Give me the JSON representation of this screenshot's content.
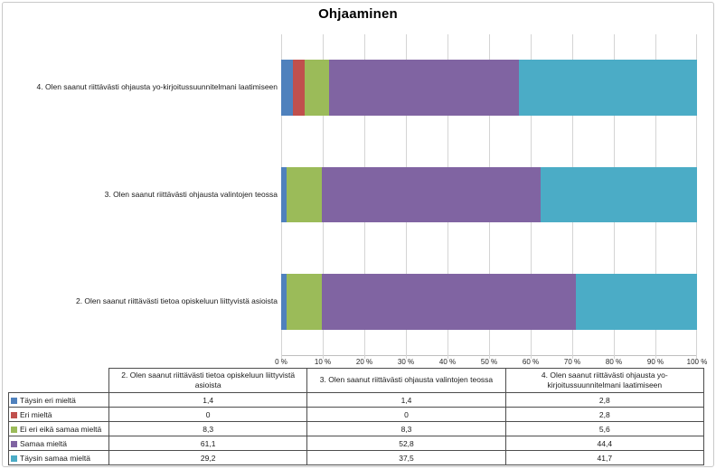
{
  "chart_data": {
    "type": "bar",
    "orientation": "horizontal",
    "stacked": true,
    "percent_stacked": true,
    "title": "Ohjaaminen",
    "categories": [
      "4. Olen saanut riittävästi ohjausta yo-kirjoitussuunnitelmani laatimiseen",
      "3. Olen saanut riittävästi ohjausta valintojen teossa",
      "2. Olen saanut riittävästi tietoa opiskeluun liittyvistä asioista"
    ],
    "series": [
      {
        "name": "Täysin eri mieltä",
        "color": "#4F81BD",
        "values": [
          2.8,
          1.4,
          1.4
        ]
      },
      {
        "name": "Eri mieltä",
        "color": "#C0504D",
        "values": [
          2.8,
          0,
          0
        ]
      },
      {
        "name": "Ei eri eikä samaa mieltä",
        "color": "#9BBB59",
        "values": [
          5.6,
          8.3,
          8.3
        ]
      },
      {
        "name": "Samaa mieltä",
        "color": "#8064A2",
        "values": [
          44.4,
          52.8,
          61.1
        ]
      },
      {
        "name": "Täysin samaa mieltä",
        "color": "#4BACC6",
        "values": [
          41.7,
          37.5,
          29.2
        ]
      }
    ],
    "xlim": [
      0,
      100
    ],
    "x_ticks": [
      "0 %",
      "10 %",
      "20 %",
      "30 %",
      "40 %",
      "50 %",
      "60 %",
      "70 %",
      "80 %",
      "90 %",
      "100 %"
    ],
    "grid": true,
    "legend_position": "table-below"
  },
  "table": {
    "columns": [
      "2. Olen saanut riittävästi tietoa opiskeluun liittyvistä asioista",
      "3. Olen saanut riittävästi ohjausta valintojen teossa",
      "4. Olen saanut riittävästi ohjausta yo-kirjoitussuunnitelmani laatimiseen"
    ],
    "rows": [
      {
        "label": "Täysin eri mieltä",
        "color": "#4F81BD",
        "values": [
          "1,4",
          "1,4",
          "2,8"
        ]
      },
      {
        "label": "Eri mieltä",
        "color": "#C0504D",
        "values": [
          "0",
          "0",
          "2,8"
        ]
      },
      {
        "label": "Ei eri eikä samaa mieltä",
        "color": "#9BBB59",
        "values": [
          "8,3",
          "8,3",
          "5,6"
        ]
      },
      {
        "label": "Samaa mieltä",
        "color": "#8064A2",
        "values": [
          "61,1",
          "52,8",
          "44,4"
        ]
      },
      {
        "label": "Täysin samaa mieltä",
        "color": "#4BACC6",
        "values": [
          "29,2",
          "37,5",
          "41,7"
        ]
      }
    ]
  },
  "style_colors": {
    "gridline": "#D4D4D4",
    "axis_line": "#BFBFBF",
    "table_border": "#4D4D4D",
    "frame_border": "#C9C9C9"
  }
}
